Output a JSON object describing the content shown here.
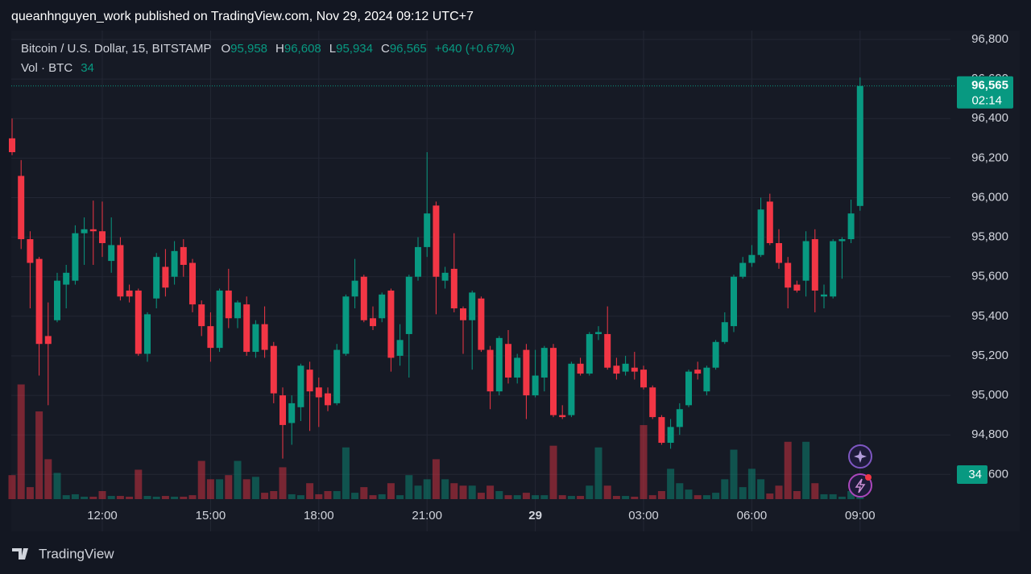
{
  "published": "queanhnguyen_work published on TradingView.com, Nov 29, 2024 09:12 UTC+7",
  "header": {
    "symbol": "Bitcoin / U.S. Dollar, 15, BITSTAMP",
    "fields": [
      {
        "key": "O",
        "text": "95,958"
      },
      {
        "key": "H",
        "text": "96,608"
      },
      {
        "key": "L",
        "text": "95,934"
      },
      {
        "key": "C",
        "text": "96,565"
      }
    ],
    "change": "+640 (+0.67%)",
    "volume_label": "Vol · BTC",
    "volume_value": 34
  },
  "footer": {
    "brand": "TradingView"
  },
  "chart_data": {
    "type": "candlestick",
    "categories": [
      null,
      null,
      null,
      null,
      null,
      null,
      null,
      null,
      null,
      null,
      "12:00",
      null,
      null,
      null,
      null,
      null,
      null,
      null,
      null,
      null,
      null,
      null,
      "15:00",
      null,
      null,
      null,
      null,
      null,
      null,
      null,
      null,
      null,
      null,
      null,
      "18:00",
      null,
      null,
      null,
      null,
      null,
      null,
      null,
      null,
      null,
      null,
      null,
      "21:00",
      null,
      null,
      null,
      null,
      null,
      null,
      null,
      null,
      null,
      null,
      null,
      "29",
      null,
      null,
      null,
      null,
      null,
      null,
      null,
      null,
      null,
      null,
      null,
      "03:00",
      null,
      null,
      null,
      null,
      null,
      null,
      null,
      null,
      null,
      null,
      null,
      "06:00",
      null,
      null,
      null,
      null,
      null,
      null,
      null,
      null,
      null,
      null,
      null,
      "09:00"
    ],
    "open": [
      96300,
      96110,
      95790,
      95690,
      95300,
      95380,
      95560,
      95580,
      95820,
      95840,
      95830,
      95680,
      95760,
      95530,
      95530,
      95210,
      95490,
      95650,
      95600,
      95750,
      95670,
      95460,
      95350,
      95240,
      95530,
      95390,
      95460,
      95220,
      95360,
      95250,
      95000,
      94860,
      94940,
      95130,
      95040,
      95010,
      94960,
      95210,
      95500,
      95600,
      95390,
      95390,
      95530,
      95200,
      95310,
      95600,
      95750,
      95960,
      95580,
      95640,
      95440,
      95380,
      95490,
      95230,
      95020,
      95260,
      95090,
      95230,
      95000,
      95090,
      95240,
      94900,
      94900,
      95160,
      95110,
      95310,
      95310,
      95150,
      95120,
      95140,
      95130,
      95040,
      94890,
      94760,
      94840,
      94950,
      95130,
      95020,
      95140,
      95270,
      95350,
      95600,
      95670,
      95710,
      95980,
      95770,
      95670,
      95560,
      95580,
      95790,
      95500,
      95500,
      95780,
      95790,
      95958
    ],
    "high": [
      96400,
      96190,
      95830,
      95700,
      95470,
      95620,
      95660,
      95860,
      95900,
      95985,
      95980,
      95900,
      95800,
      95560,
      95540,
      95420,
      95720,
      95740,
      95780,
      95790,
      95690,
      95480,
      95420,
      95540,
      95640,
      95480,
      95500,
      95380,
      95450,
      95270,
      95040,
      95000,
      95160,
      95170,
      95090,
      95040,
      95260,
      95510,
      95690,
      95610,
      95450,
      95520,
      95540,
      95360,
      95610,
      95800,
      96230,
      95980,
      95650,
      95820,
      95450,
      95530,
      95500,
      95250,
      95300,
      95330,
      95210,
      95260,
      95230,
      95250,
      95260,
      94950,
      95170,
      95190,
      95320,
      95350,
      95450,
      95190,
      95200,
      95220,
      95150,
      95050,
      94900,
      94880,
      94960,
      95130,
      95170,
      95150,
      95280,
      95420,
      95610,
      95700,
      95760,
      96000,
      96020,
      95840,
      95700,
      95580,
      95830,
      95840,
      95560,
      95790,
      95800,
      95990,
      96608
    ],
    "low": [
      96215,
      95740,
      95440,
      95100,
      94950,
      95370,
      95440,
      95560,
      95660,
      95660,
      95700,
      95620,
      95480,
      95470,
      95200,
      95170,
      95440,
      95500,
      95560,
      95600,
      95420,
      95300,
      95170,
      95220,
      95340,
      95340,
      95200,
      95190,
      95190,
      94960,
      94680,
      94750,
      94870,
      94820,
      94840,
      94920,
      94950,
      95200,
      95440,
      95370,
      95330,
      95370,
      95120,
      95150,
      95090,
      95580,
      95700,
      95410,
      95540,
      95420,
      95210,
      95130,
      95220,
      94930,
      95000,
      95060,
      95060,
      94880,
      94990,
      95020,
      94890,
      94880,
      94890,
      95100,
      95100,
      95280,
      95130,
      95080,
      95100,
      95080,
      95030,
      94880,
      94750,
      94730,
      94800,
      94940,
      95080,
      95000,
      95130,
      95260,
      95320,
      95590,
      95650,
      95700,
      95760,
      95640,
      95440,
      95520,
      95500,
      95420,
      95440,
      95490,
      95590,
      95770,
      95934
    ],
    "close": [
      96230,
      95790,
      95670,
      95260,
      95260,
      95580,
      95620,
      95820,
      95840,
      95830,
      95770,
      95760,
      95500,
      95500,
      95210,
      95410,
      95700,
      95545,
      95730,
      95660,
      95460,
      95350,
      95240,
      95530,
      95390,
      95470,
      95220,
      95360,
      95230,
      95010,
      94850,
      94960,
      95150,
      95020,
      94990,
      94950,
      95230,
      95500,
      95580,
      95380,
      95350,
      95510,
      95190,
      95280,
      95600,
      95750,
      95920,
      95600,
      95620,
      95440,
      95380,
      95520,
      95230,
      95020,
      95290,
      95090,
      95190,
      95000,
      95100,
      95240,
      94900,
      94890,
      95160,
      95110,
      95310,
      95320,
      95140,
      95110,
      95160,
      95120,
      95040,
      94890,
      94760,
      94840,
      94930,
      95120,
      95110,
      95140,
      95270,
      95370,
      95600,
      95670,
      95710,
      95940,
      95770,
      95670,
      95545,
      95530,
      95780,
      95530,
      95510,
      95780,
      95790,
      95920,
      96565
    ],
    "volume": [
      128,
      612,
      64,
      468,
      213,
      140,
      21,
      26,
      13,
      13,
      43,
      17,
      17,
      13,
      157,
      17,
      13,
      17,
      13,
      13,
      21,
      204,
      106,
      106,
      128,
      204,
      106,
      119,
      34,
      43,
      170,
      26,
      21,
      85,
      26,
      43,
      43,
      276,
      34,
      64,
      21,
      26,
      85,
      21,
      128,
      72,
      106,
      213,
      106,
      85,
      72,
      72,
      34,
      72,
      43,
      21,
      21,
      34,
      21,
      21,
      285,
      21,
      17,
      17,
      72,
      276,
      72,
      17,
      17,
      13,
      395,
      21,
      43,
      162,
      85,
      51,
      21,
      21,
      34,
      106,
      264,
      64,
      162,
      106,
      30,
      72,
      306,
      43,
      306,
      85,
      26,
      26,
      13,
      43,
      34
    ],
    "up_color": "#089981",
    "down_color": "#f23645",
    "ylim": [
      94475,
      96845
    ],
    "yticks": [
      {
        "value": 94600,
        "label": "94,600"
      },
      {
        "value": 94800,
        "label": "94,800"
      },
      {
        "value": 95000,
        "label": "95,000"
      },
      {
        "value": 95200,
        "label": "95,200"
      },
      {
        "value": 95400,
        "label": "95,400"
      },
      {
        "value": 95600,
        "label": "95,600"
      },
      {
        "value": 95800,
        "label": "95,800"
      },
      {
        "value": 96000,
        "label": "96,000"
      },
      {
        "value": 96200,
        "label": "96,200"
      },
      {
        "value": 96400,
        "label": "96,400"
      },
      {
        "value": 96600,
        "label": "96,600"
      },
      {
        "value": 96800,
        "label": "96,800"
      }
    ],
    "vlim": [
      0,
      2500
    ],
    "grid": true,
    "last_price": {
      "value": 96565,
      "label": "96,565"
    },
    "countdown": "02:14"
  }
}
